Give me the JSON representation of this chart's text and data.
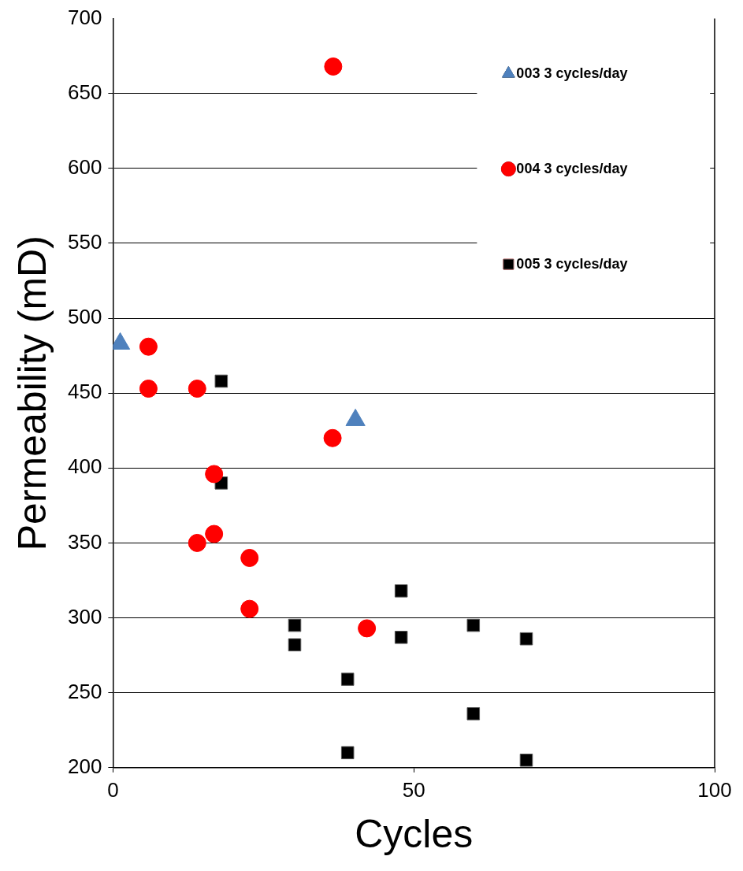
{
  "chart_data": {
    "type": "scatter",
    "xlabel": "Cycles",
    "ylabel": "Permeability (mD)",
    "xlim": [
      0,
      100
    ],
    "xticks": [
      0,
      50,
      100
    ],
    "ylim": [
      200,
      700
    ],
    "yticks": [
      200,
      250,
      300,
      350,
      400,
      450,
      500,
      550,
      600,
      650,
      700
    ],
    "grid": "y",
    "legend": "top right",
    "series": [
      {
        "name": "003 3 cycles/day",
        "color": "#4f81bd",
        "marker": "triangle",
        "x": [
          1.2,
          40.3
        ],
        "values": [
          483,
          432
        ]
      },
      {
        "name": "004 3 cycles/day",
        "color": "#ff0000",
        "marker": "circle",
        "x": [
          36.6,
          5.9,
          5.9,
          14,
          36.5,
          16.8,
          16.8,
          14,
          22.7,
          22.7,
          42.2
        ],
        "values": [
          668,
          481,
          453,
          453,
          420,
          396,
          356,
          350,
          340,
          306,
          293
        ]
      },
      {
        "name": "005 3 cycles/day",
        "color": "#000000",
        "marker": "square",
        "x": [
          18,
          18,
          30.2,
          30.2,
          39,
          39,
          47.9,
          47.9,
          59.9,
          59.9,
          68.7,
          68.7
        ],
        "values": [
          458,
          390,
          295,
          282,
          259,
          210,
          318,
          287,
          295,
          236,
          286,
          205
        ]
      }
    ]
  }
}
